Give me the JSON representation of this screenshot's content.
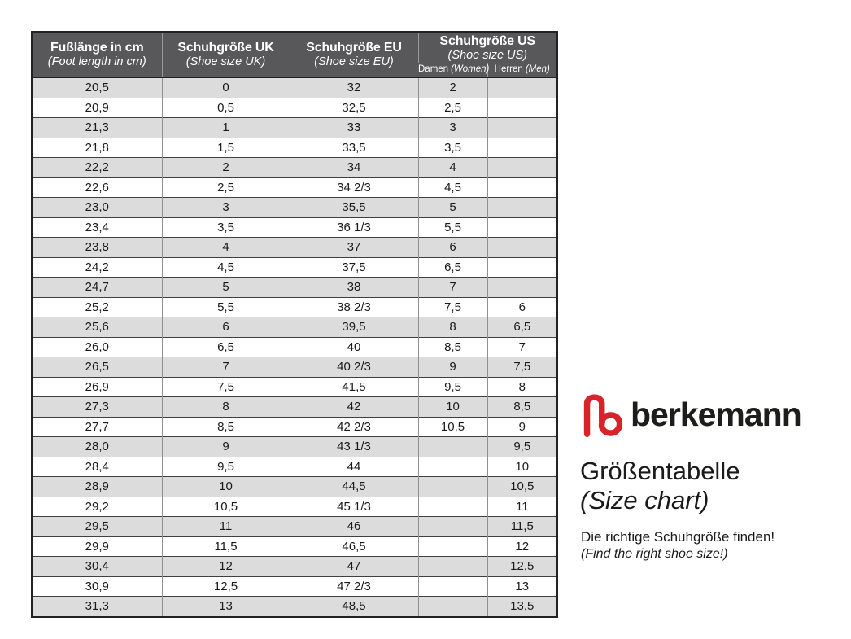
{
  "chart_data": {
    "type": "table",
    "title": "Größentabelle (Size chart)",
    "columns": [
      {
        "label": "Fußlänge in cm",
        "sublabel": "(Foot length in cm)"
      },
      {
        "label": "Schuhgröße UK",
        "sublabel": "(Shoe size UK)"
      },
      {
        "label": "Schuhgröße EU",
        "sublabel": "(Shoe size EU)"
      },
      {
        "label": "Schuhgröße US",
        "sublabel": "(Shoe size US)",
        "subcolumns": [
          {
            "label": "Damen",
            "label_en": "(Women)"
          },
          {
            "label": "Herren",
            "label_en": "(Men)"
          }
        ]
      }
    ],
    "rows": [
      [
        "20,5",
        "0",
        "32",
        "2",
        ""
      ],
      [
        "20,9",
        "0,5",
        "32,5",
        "2,5",
        ""
      ],
      [
        "21,3",
        "1",
        "33",
        "3",
        ""
      ],
      [
        "21,8",
        "1,5",
        "33,5",
        "3,5",
        ""
      ],
      [
        "22,2",
        "2",
        "34",
        "4",
        ""
      ],
      [
        "22,6",
        "2,5",
        "34 2/3",
        "4,5",
        ""
      ],
      [
        "23,0",
        "3",
        "35,5",
        "5",
        ""
      ],
      [
        "23,4",
        "3,5",
        "36 1/3",
        "5,5",
        ""
      ],
      [
        "23,8",
        "4",
        "37",
        "6",
        ""
      ],
      [
        "24,2",
        "4,5",
        "37,5",
        "6,5",
        ""
      ],
      [
        "24,7",
        "5",
        "38",
        "7",
        ""
      ],
      [
        "25,2",
        "5,5",
        "38 2/3",
        "7,5",
        "6"
      ],
      [
        "25,6",
        "6",
        "39,5",
        "8",
        "6,5"
      ],
      [
        "26,0",
        "6,5",
        "40",
        "8,5",
        "7"
      ],
      [
        "26,5",
        "7",
        "40 2/3",
        "9",
        "7,5"
      ],
      [
        "26,9",
        "7,5",
        "41,5",
        "9,5",
        "8"
      ],
      [
        "27,3",
        "8",
        "42",
        "10",
        "8,5"
      ],
      [
        "27,7",
        "8,5",
        "42 2/3",
        "10,5",
        "9"
      ],
      [
        "28,0",
        "9",
        "43 1/3",
        "",
        "9,5"
      ],
      [
        "28,4",
        "9,5",
        "44",
        "",
        "10"
      ],
      [
        "28,9",
        "10",
        "44,5",
        "",
        "10,5"
      ],
      [
        "29,2",
        "10,5",
        "45 1/3",
        "",
        "11"
      ],
      [
        "29,5",
        "11",
        "46",
        "",
        "11,5"
      ],
      [
        "29,9",
        "11,5",
        "46,5",
        "",
        "12"
      ],
      [
        "30,4",
        "12",
        "47",
        "",
        "12,5"
      ],
      [
        "30,9",
        "12,5",
        "47 2/3",
        "",
        "13"
      ],
      [
        "31,3",
        "13",
        "48,5",
        "",
        "13,5"
      ]
    ]
  },
  "brand": {
    "logo_icon": "berkemann-b-logo",
    "name": "berkemann",
    "title_de": "Größentabelle",
    "title_en": "(Size chart)",
    "tagline_de": "Die richtige Schuhgröße finden!",
    "tagline_en": "(Find the right shoe size!)"
  },
  "colors": {
    "header_bg": "#58585a",
    "header_text": "#ffffff",
    "row_alt_bg": "#dcdcdc",
    "row_bg": "#ffffff",
    "grid_h": "#3f3f3f",
    "grid_v": "#8f8f8f",
    "outer_border": "#222222",
    "text": "#1a1a1a",
    "logo_red": "#d8232a"
  }
}
